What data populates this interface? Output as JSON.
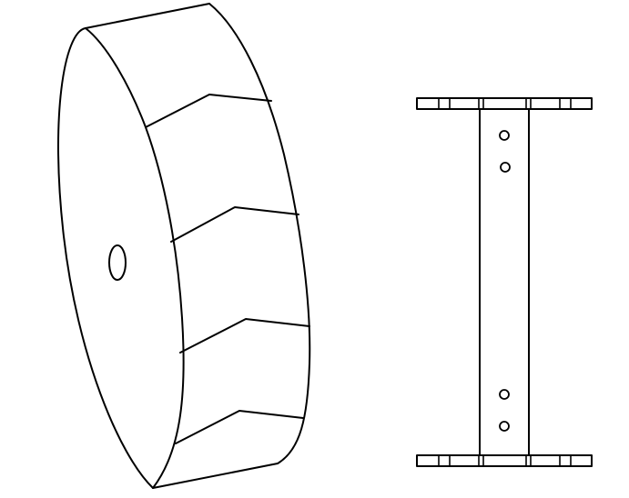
{
  "figure": {
    "left_part": {
      "name": "wheel-with-chevron-treads",
      "tread_count": 4,
      "has_center_hole": true
    },
    "right_part": {
      "name": "axle-bracket",
      "flange_count": 2,
      "bolt_holes_per_end": 2
    },
    "colors": {
      "line": "#000000",
      "background": "#ffffff"
    }
  }
}
